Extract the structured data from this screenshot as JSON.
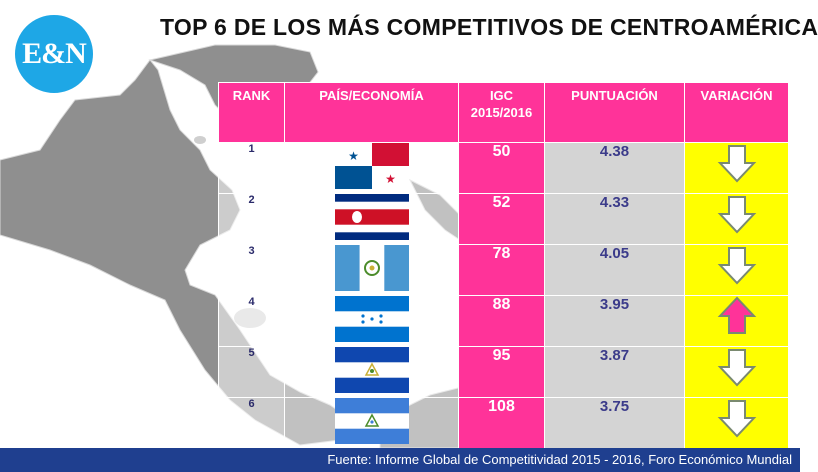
{
  "logo": {
    "text": "E&N"
  },
  "title": "TOP 6 DE LOS MÁS COMPETITIVOS DE CENTROAMÉRICA",
  "colors": {
    "header": "#ff3399",
    "score_bg": "#d4d4d4",
    "variation_bg": "#ffff00",
    "arrow_down": "#ffffff",
    "arrow_up": "#ff3399",
    "footer": "#1f3f8f",
    "map_land": "#8f8f8f"
  },
  "table": {
    "headers": {
      "rank": "RANK",
      "country": "PAÍS/ECONOMÍA",
      "igc_line1": "IGC",
      "igc_line2": "2015/2016",
      "score": "PUNTUACIÓN",
      "variation": "VARIACIÓN"
    },
    "rows": [
      {
        "rank": "1",
        "flag": "panama-flag",
        "igc": "50",
        "score": "4.38",
        "variation": "down"
      },
      {
        "rank": "2",
        "flag": "costa-rica-flag",
        "igc": "52",
        "score": "4.33",
        "variation": "down"
      },
      {
        "rank": "3",
        "flag": "guatemala-flag",
        "igc": "78",
        "score": "4.05",
        "variation": "down"
      },
      {
        "rank": "4",
        "flag": "honduras-flag",
        "igc": "88",
        "score": "3.95",
        "variation": "up"
      },
      {
        "rank": "5",
        "flag": "el-salvador-flag",
        "igc": "95",
        "score": "3.87",
        "variation": "down"
      },
      {
        "rank": "6",
        "flag": "nicaragua-flag",
        "igc": "108",
        "score": "3.75",
        "variation": "down"
      }
    ]
  },
  "chart_data": {
    "type": "table",
    "title": "TOP 6 DE LOS MÁS COMPETITIVOS DE CENTROAMÉRICA",
    "columns": [
      "RANK",
      "PAÍS/ECONOMÍA",
      "IGC 2015/2016",
      "PUNTUACIÓN",
      "VARIACIÓN"
    ],
    "rows": [
      [
        "1",
        "panama-flag",
        50,
        4.38,
        "down"
      ],
      [
        "2",
        "costa-rica-flag",
        52,
        4.33,
        "down"
      ],
      [
        "3",
        "guatemala-flag",
        78,
        4.05,
        "down"
      ],
      [
        "4",
        "honduras-flag",
        88,
        3.95,
        "up"
      ],
      [
        "5",
        "el-salvador-flag",
        95,
        3.87,
        "down"
      ],
      [
        "6",
        "nicaragua-flag",
        108,
        3.75,
        "down"
      ]
    ]
  },
  "footer": {
    "source": "Fuente: Informe Global de Competitividad 2015 - 2016, Foro Económico Mundial"
  }
}
